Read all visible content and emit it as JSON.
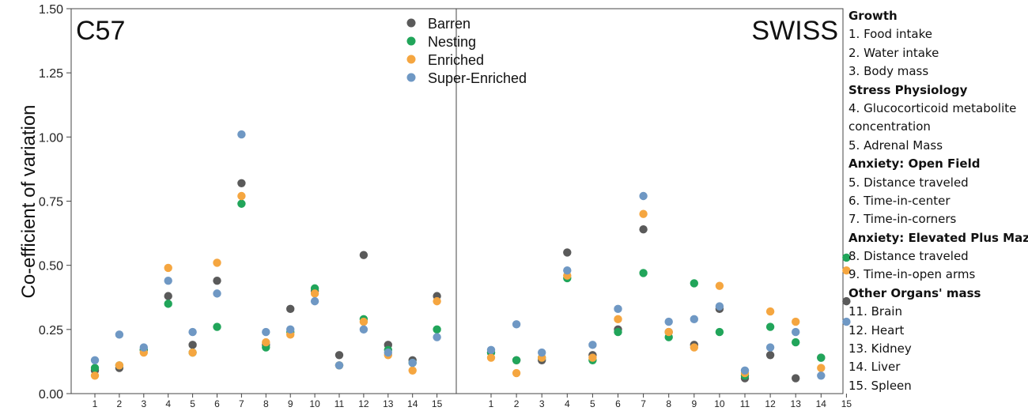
{
  "chart_data": [
    {
      "type": "scatter",
      "title": "C57",
      "ylabel": "Co-efficient of variation",
      "ylim": [
        0,
        1.5
      ],
      "yticks": [
        "0.00",
        "0.25",
        "0.50",
        "0.75",
        "1.00",
        "1.25",
        "1.50"
      ],
      "categories": [
        "1",
        "2",
        "3",
        "4",
        "5",
        "6",
        "7",
        "8",
        "9",
        "10",
        "11",
        "12",
        "13",
        "14",
        "15"
      ],
      "series": [
        {
          "name": "Barren",
          "color": "#5a5a5a",
          "values": [
            0.09,
            0.1,
            0.17,
            0.38,
            0.19,
            0.44,
            0.82,
            0.19,
            0.33,
            0.4,
            0.15,
            0.54,
            0.19,
            0.13,
            0.38
          ]
        },
        {
          "name": "Nesting",
          "color": "#21a55a",
          "values": [
            0.1,
            0.11,
            0.17,
            0.35,
            0.16,
            0.26,
            0.74,
            0.18,
            0.24,
            0.41,
            0.11,
            0.29,
            0.17,
            0.12,
            0.25
          ]
        },
        {
          "name": "Enriched",
          "color": "#f5a640",
          "values": [
            0.07,
            0.11,
            0.16,
            0.49,
            0.16,
            0.51,
            0.77,
            0.2,
            0.23,
            0.39,
            0.11,
            0.28,
            0.15,
            0.09,
            0.36
          ]
        },
        {
          "name": "Super-Enriched",
          "color": "#6f98c4",
          "values": [
            0.13,
            0.23,
            0.18,
            0.44,
            0.24,
            0.39,
            1.01,
            0.24,
            0.25,
            0.36,
            0.11,
            0.25,
            0.16,
            0.12,
            0.22
          ]
        }
      ],
      "legend": "top-right"
    },
    {
      "type": "scatter",
      "title": "SWISS",
      "ylim": [
        0,
        1.5
      ],
      "categories": [
        "1",
        "2",
        "3",
        "4",
        "5",
        "6",
        "7",
        "8",
        "9",
        "10",
        "11",
        "12",
        "13",
        "14",
        "15"
      ],
      "series": [
        {
          "name": "Barren",
          "color": "#5a5a5a",
          "values": [
            0.16,
            0.13,
            0.13,
            0.55,
            0.15,
            0.25,
            0.64,
            0.24,
            0.19,
            0.33,
            0.06,
            0.15,
            0.06,
            0.14,
            0.36
          ]
        },
        {
          "name": "Nesting",
          "color": "#21a55a",
          "values": [
            0.16,
            0.13,
            0.14,
            0.45,
            0.13,
            0.24,
            0.47,
            0.22,
            0.43,
            0.24,
            0.07,
            0.26,
            0.2,
            0.14,
            0.53
          ]
        },
        {
          "name": "Enriched",
          "color": "#f5a640",
          "values": [
            0.14,
            0.08,
            0.14,
            0.46,
            0.14,
            0.29,
            0.7,
            0.24,
            0.18,
            0.42,
            0.08,
            0.32,
            0.28,
            0.1,
            0.48
          ]
        },
        {
          "name": "Super-Enriched",
          "color": "#6f98c4",
          "values": [
            0.17,
            0.27,
            0.16,
            0.48,
            0.19,
            0.33,
            0.77,
            0.28,
            0.29,
            0.34,
            0.09,
            0.18,
            0.24,
            0.07,
            0.28
          ]
        }
      ]
    }
  ],
  "side_legend": [
    {
      "text": "Growth",
      "heading": true
    },
    {
      "text": "1. Food intake",
      "heading": false
    },
    {
      "text": "2. Water intake",
      "heading": false
    },
    {
      "text": "3. Body mass",
      "heading": false
    },
    {
      "text": "Stress Physiology",
      "heading": true
    },
    {
      "text": "4. Glucocorticoid metabolite",
      "heading": false
    },
    {
      "text": "concentration",
      "heading": false
    },
    {
      "text": "5. Adrenal Mass",
      "heading": false
    },
    {
      "text": "Anxiety: Open Field",
      "heading": true
    },
    {
      "text": "5. Distance traveled",
      "heading": false
    },
    {
      "text": "6. Time-in-center",
      "heading": false
    },
    {
      "text": "7. Time-in-corners",
      "heading": false
    },
    {
      "text": "Anxiety: Elevated Plus Maze",
      "heading": true
    },
    {
      "text": "8. Distance traveled",
      "heading": false
    },
    {
      "text": "9. Time-in-open arms",
      "heading": false
    },
    {
      "text": "Other Organs' mass",
      "heading": true
    },
    {
      "text": "11. Brain",
      "heading": false
    },
    {
      "text": "12. Heart",
      "heading": false
    },
    {
      "text": "13. Kidney",
      "heading": false
    },
    {
      "text": "14. Liver",
      "heading": false
    },
    {
      "text": "15. Spleen",
      "heading": false
    }
  ]
}
